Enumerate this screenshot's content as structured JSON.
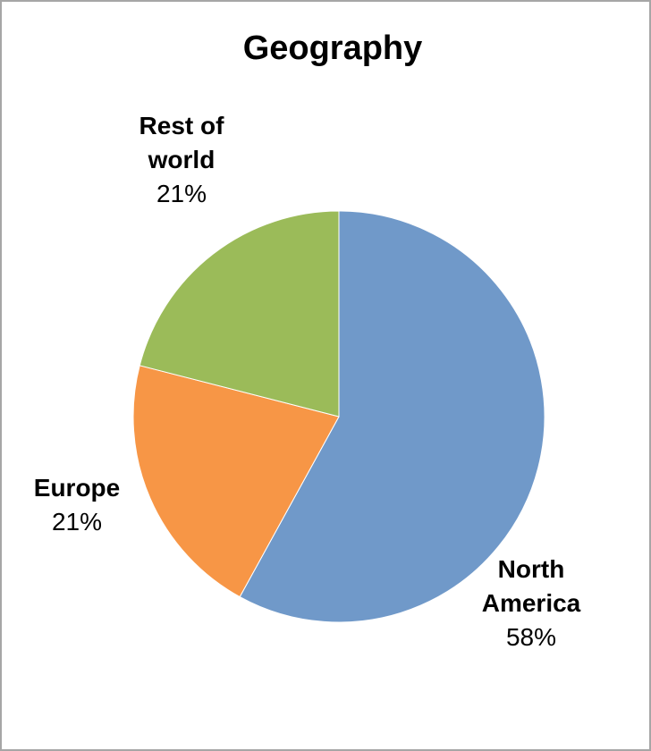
{
  "chart_data": {
    "type": "pie",
    "title": "Geography",
    "start_angle_deg": 0,
    "direction": "clockwise",
    "legend": "none",
    "slices": [
      {
        "label_lines": [
          "North",
          "America"
        ],
        "value": 58,
        "value_label": "58%",
        "color": "#7099c9"
      },
      {
        "label_lines": [
          "Europe"
        ],
        "value": 21,
        "value_label": "21%",
        "color": "#f79646"
      },
      {
        "label_lines": [
          "Rest of",
          "world"
        ],
        "value": 21,
        "value_label": "21%",
        "color": "#9bbb59"
      }
    ]
  }
}
